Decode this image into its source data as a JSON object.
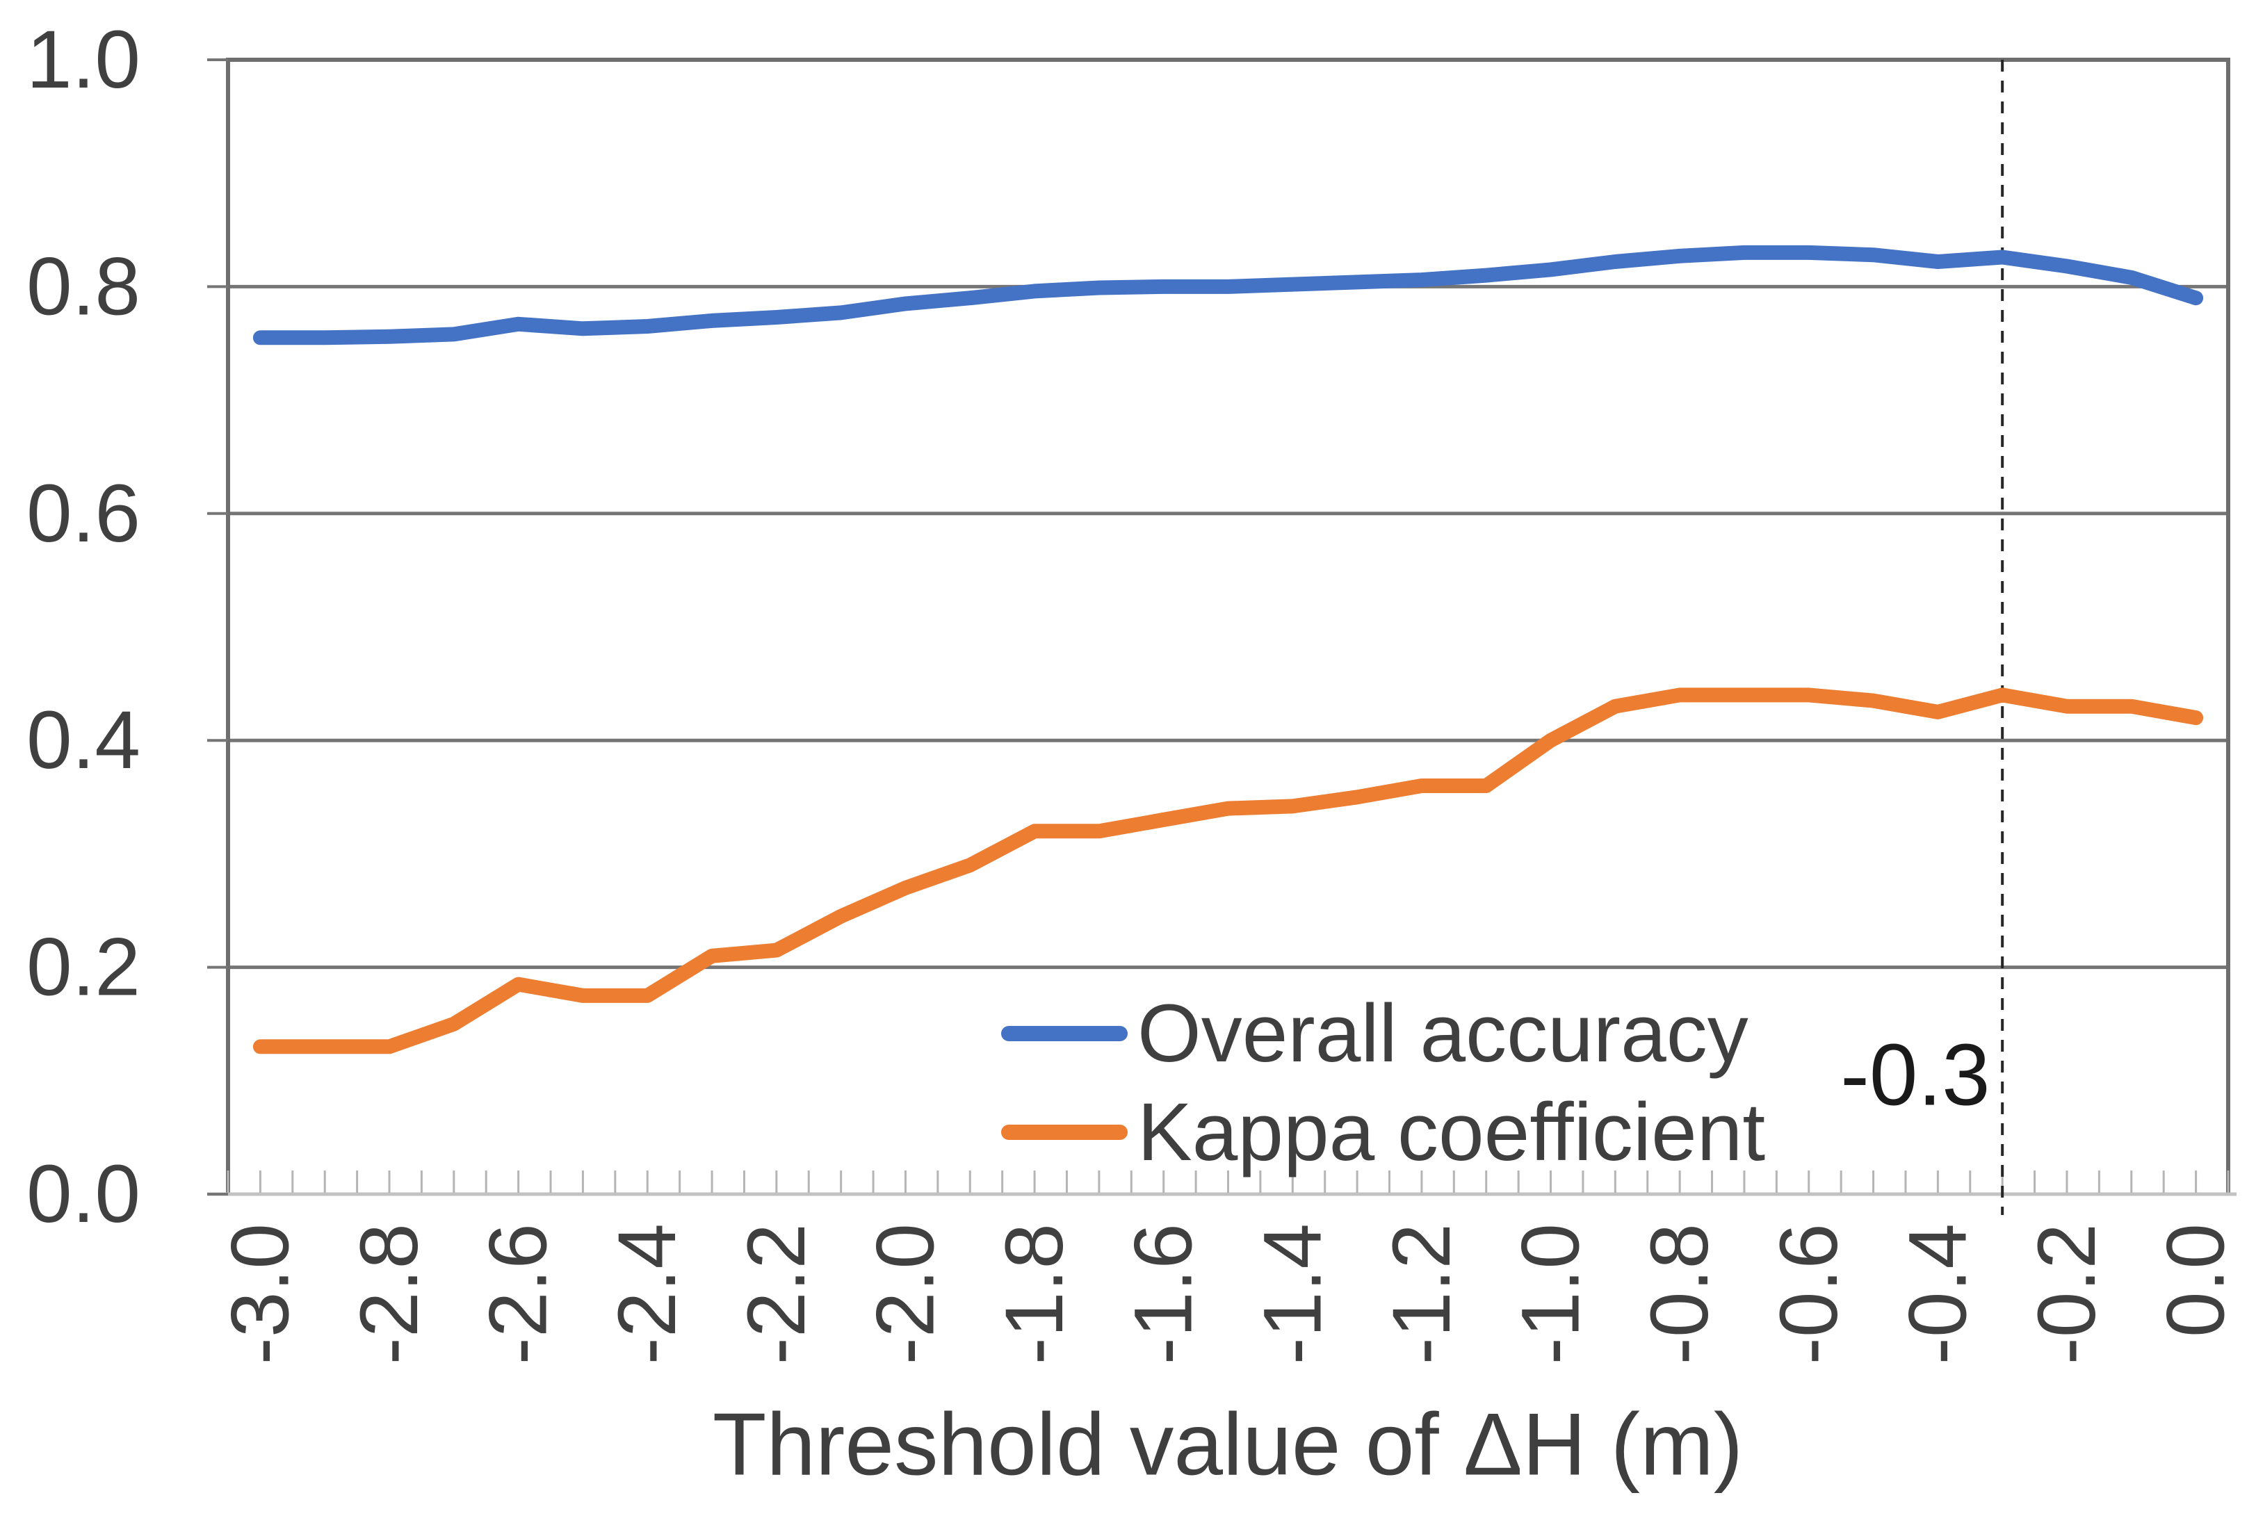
{
  "chart_data": {
    "type": "line",
    "title": "",
    "xlabel": "Threshold value of ΔH (m)",
    "ylabel": "",
    "xlim": [
      -3.05,
      0.05
    ],
    "ylim": [
      0.0,
      1.0
    ],
    "grid": true,
    "legend_position": "inside-lower-right",
    "x_tick_labels": [
      "-3.0",
      "-2.8",
      "-2.6",
      "-2.4",
      "-2.2",
      "-2.0",
      "-1.8",
      "-1.6",
      "-1.4",
      "-1.2",
      "-1.0",
      "-0.8",
      "-0.6",
      "-0.4",
      "-0.2",
      "0.0"
    ],
    "x_tick_values": [
      -3.0,
      -2.8,
      -2.6,
      -2.4,
      -2.2,
      -2.0,
      -1.8,
      -1.6,
      -1.4,
      -1.2,
      -1.0,
      -0.8,
      -0.6,
      -0.4,
      -0.2,
      0.0
    ],
    "y_tick_labels": [
      "0.0",
      "0.2",
      "0.4",
      "0.6",
      "0.8",
      "1.0"
    ],
    "y_tick_values": [
      0.0,
      0.2,
      0.4,
      0.6,
      0.8,
      1.0
    ],
    "minor_tick_step": 0.05,
    "x": [
      -3.0,
      -2.9,
      -2.8,
      -2.7,
      -2.6,
      -2.5,
      -2.4,
      -2.3,
      -2.2,
      -2.1,
      -2.0,
      -1.9,
      -1.8,
      -1.7,
      -1.6,
      -1.5,
      -1.4,
      -1.3,
      -1.2,
      -1.1,
      -1.0,
      -0.9,
      -0.8,
      -0.7,
      -0.6,
      -0.5,
      -0.4,
      -0.3,
      -0.2,
      -0.1,
      0.0
    ],
    "series": [
      {
        "name": "Overall accuracy",
        "color": "#4472C4",
        "values": [
          0.755,
          0.755,
          0.756,
          0.758,
          0.767,
          0.763,
          0.765,
          0.77,
          0.773,
          0.777,
          0.785,
          0.79,
          0.796,
          0.799,
          0.8,
          0.8,
          0.802,
          0.804,
          0.806,
          0.81,
          0.815,
          0.822,
          0.827,
          0.83,
          0.83,
          0.828,
          0.822,
          0.826,
          0.818,
          0.808,
          0.79
        ]
      },
      {
        "name": "Kappa coefficient",
        "color": "#ED7D31",
        "values": [
          0.13,
          0.13,
          0.13,
          0.15,
          0.185,
          0.175,
          0.175,
          0.21,
          0.215,
          0.245,
          0.27,
          0.29,
          0.32,
          0.32,
          0.33,
          0.34,
          0.342,
          0.35,
          0.36,
          0.36,
          0.4,
          0.43,
          0.44,
          0.44,
          0.44,
          0.435,
          0.425,
          0.44,
          0.43,
          0.43,
          0.42
        ]
      }
    ],
    "annotation": {
      "label": "-0.3",
      "x": -0.3,
      "style": "dashed-vertical-line"
    },
    "colors": {
      "grid": "#757575",
      "plot_border": "#6e6e6e",
      "x_axis_line": "#c2c2c2",
      "minor_tick": "#b5b5b5",
      "y_tick": "#757575",
      "tick_text": "#404040",
      "annotation_line": "#262626"
    }
  }
}
